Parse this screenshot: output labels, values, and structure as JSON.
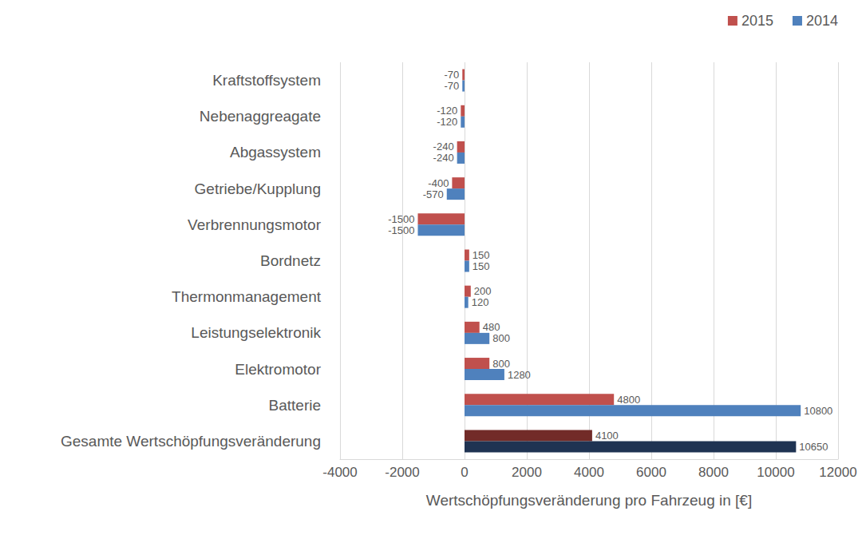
{
  "chart_data": {
    "type": "bar",
    "orientation": "horizontal",
    "categories": [
      "Kraftstoffsystem",
      "Nebenaggreagate",
      "Abgassystem",
      "Getriebe/Kupplung",
      "Verbrennungsmotor",
      "Bordnetz",
      "Thermonmanagement",
      "Leistungselektronik",
      "Elektromotor",
      "Batterie",
      "Gesamte Wertschöpfungsveränderung"
    ],
    "series": [
      {
        "name": "2015",
        "color": "#c0504d",
        "colors": [
          "#c0504d",
          "#c0504d",
          "#c0504d",
          "#c0504d",
          "#c0504d",
          "#c0504d",
          "#c0504d",
          "#c0504d",
          "#c0504d",
          "#c0504d",
          "#722b28"
        ],
        "values": [
          -70,
          -120,
          -240,
          -400,
          -1500,
          150,
          200,
          480,
          800,
          4800,
          4100
        ]
      },
      {
        "name": "2014",
        "color": "#4f81bd",
        "colors": [
          "#4f81bd",
          "#4f81bd",
          "#4f81bd",
          "#4f81bd",
          "#4f81bd",
          "#4f81bd",
          "#4f81bd",
          "#4f81bd",
          "#4f81bd",
          "#4f81bd",
          "#1f3352"
        ],
        "values": [
          -70,
          -120,
          -240,
          -570,
          -1500,
          150,
          120,
          800,
          1280,
          10800,
          10650
        ]
      }
    ],
    "xlabel": "Wertschöpfungsveränderung pro Fahrzeug in [€]",
    "xlim": [
      -4000,
      12000
    ],
    "xticks": [
      -4000,
      -2000,
      0,
      2000,
      4000,
      6000,
      8000,
      10000,
      12000
    ],
    "grid": true,
    "legend": "top-right",
    "data_labels": true
  }
}
